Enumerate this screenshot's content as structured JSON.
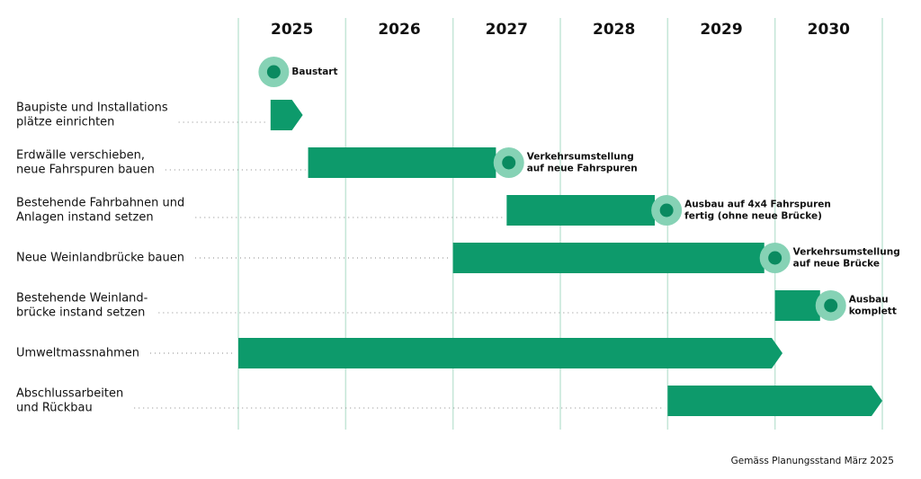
{
  "chart_data": {
    "type": "gantt",
    "xlim": [
      2025,
      2031
    ],
    "xticks": [
      2025,
      2026,
      2027,
      2028,
      2029,
      2030
    ],
    "color": "#0d9a6b",
    "milestone_color": "#0a8a60",
    "milestone_ring": "#86d2b5",
    "grid_color": "#c4e6d7",
    "start_milestone": {
      "x": 2025.33,
      "lines": [
        "Baustart"
      ]
    },
    "tasks": [
      {
        "label": [
          "Baupiste und Installations",
          "plätze einrichten"
        ],
        "start": 2025.3,
        "end": 2025.6,
        "arrow": true
      },
      {
        "label": [
          "Erdwälle verschieben,",
          "neue Fahrspuren bauen"
        ],
        "start": 2025.65,
        "end": 2027.4,
        "arrow": false,
        "milestone": {
          "x": 2027.52,
          "lines": [
            "Verkehrsumstellung",
            "auf neue Fahrspuren"
          ]
        }
      },
      {
        "label": [
          "Bestehende Fahrbahnen und",
          "Anlagen instand setzen"
        ],
        "start": 2027.5,
        "end": 2028.88,
        "arrow": false,
        "milestone": {
          "x": 2028.99,
          "lines": [
            "Ausbau auf 4x4 Fahrspuren",
            "fertig (ohne neue Brücke)"
          ]
        }
      },
      {
        "label": [
          "Neue Weinlandbrücke bauen"
        ],
        "start": 2027.0,
        "end": 2029.9,
        "arrow": false,
        "milestone": {
          "x": 2030.0,
          "lines": [
            "Verkehrsumstellung",
            "auf neue Brücke"
          ]
        }
      },
      {
        "label": [
          "Bestehende Weinland-",
          "brücke instand setzen"
        ],
        "start": 2030.0,
        "end": 2030.42,
        "arrow": false,
        "milestone": {
          "x": 2030.52,
          "lines": [
            "Ausbau",
            "komplett"
          ]
        }
      },
      {
        "label": [
          "Umweltmassnahmen"
        ],
        "start": 2025.0,
        "end": 2030.07,
        "arrow": true
      },
      {
        "label": [
          "Abschlussarbeiten",
          "und Rückbau"
        ],
        "start": 2029.0,
        "end": 2031.0,
        "arrow": true
      }
    ],
    "footnote": "Gemäss Planungsstand März 2025"
  }
}
